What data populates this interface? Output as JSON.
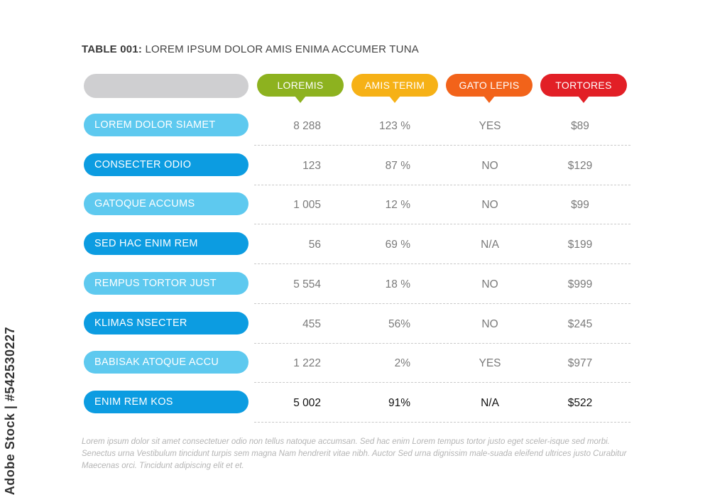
{
  "title": {
    "prefix": "TABLE 001:",
    "text": "LOREM IPSUM DOLOR AMIS ENIMA ACCUMER TUNA"
  },
  "columns": [
    {
      "label": "LOREMIS",
      "color": "#8db21f"
    },
    {
      "label": "AMIS TERIM",
      "color": "#f6b116"
    },
    {
      "label": "GATO LEPIS",
      "color": "#f2631a"
    },
    {
      "label": "TORTORES",
      "color": "#e21f26"
    }
  ],
  "rows": [
    {
      "label": "LOREM DOLOR SIAMET",
      "color": "#5ec9ef",
      "cells": [
        "8 288",
        "123 %",
        "YES",
        "$89"
      ]
    },
    {
      "label": "CONSECTER ODIO",
      "color": "#0c9ce1",
      "cells": [
        "123",
        "87 %",
        "NO",
        "$129"
      ]
    },
    {
      "label": "GATOQUE ACCUMS",
      "color": "#5ec9ef",
      "cells": [
        "1 005",
        "12 %",
        "NO",
        "$99"
      ]
    },
    {
      "label": "SED HAC ENIM REM",
      "color": "#0c9ce1",
      "cells": [
        "56",
        "69 %",
        "N/A",
        "$199"
      ]
    },
    {
      "label": "REMPUS TORTOR JUST",
      "color": "#5ec9ef",
      "cells": [
        "5 554",
        "18 %",
        "NO",
        "$999"
      ]
    },
    {
      "label": "KLIMAS NSECTER",
      "color": "#0c9ce1",
      "cells": [
        "455",
        "56%",
        "NO",
        "$245"
      ]
    },
    {
      "label": "BABISAK ATOQUE ACCU",
      "color": "#5ec9ef",
      "cells": [
        "1 222",
        "2%",
        "YES",
        "$977"
      ]
    },
    {
      "label": "ENIM REM KOS",
      "color": "#0c9ce1",
      "cells": [
        "5 002",
        "91%",
        "N/A",
        "$522"
      ],
      "emphasis": true
    }
  ],
  "footnote": "Lorem ipsum dolor sit amet consectetuer odio non tellus natoque accumsan. Sed hac enim Lorem tempus tortor justo eget sceler-isque sed morbi. Senectus urna Vestibulum tincidunt turpis sem magna Nam hendrerit vitae nibh. Auctor Sed urna dignissim male-suada eleifend ultrices justo Curabitur Maecenas orci. Tincidunt adipiscing elit et et.",
  "side_id": "Adobe Stock | #542530227"
}
